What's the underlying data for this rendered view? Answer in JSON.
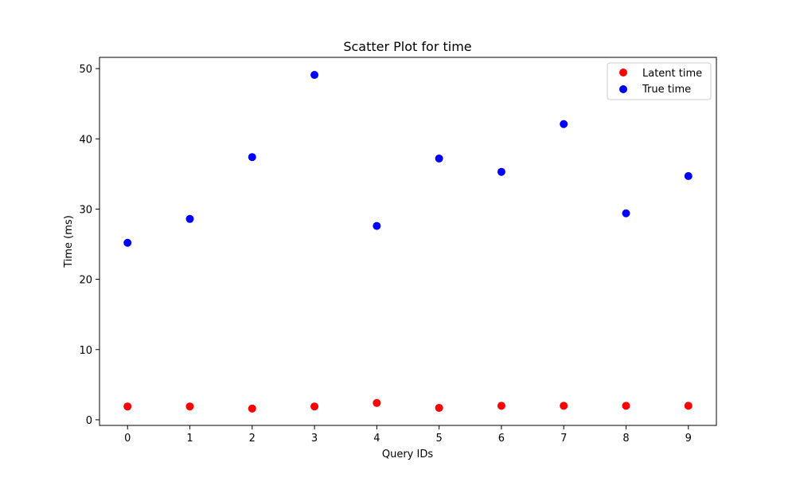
{
  "chart_data": {
    "type": "scatter",
    "title": "Scatter Plot for time",
    "xlabel": "Query IDs",
    "ylabel": "Time (ms)",
    "x": [
      0,
      1,
      2,
      3,
      4,
      5,
      6,
      7,
      8,
      9
    ],
    "xticks": [
      "0",
      "1",
      "2",
      "3",
      "4",
      "5",
      "6",
      "7",
      "8",
      "9"
    ],
    "yticks": [
      "0",
      "10",
      "20",
      "30",
      "40",
      "50"
    ],
    "xlim": [
      -0.45,
      9.45
    ],
    "ylim": [
      -0.8,
      51.6
    ],
    "grid": false,
    "legend_position": "top-right",
    "series": [
      {
        "name": "Latent time",
        "color": "#ff0000",
        "values": [
          1.9,
          1.9,
          1.6,
          1.9,
          2.4,
          1.7,
          2.0,
          2.0,
          2.0,
          2.0
        ]
      },
      {
        "name": "True time",
        "color": "#0000ff",
        "values": [
          25.2,
          28.6,
          37.4,
          49.1,
          27.6,
          37.2,
          35.3,
          42.1,
          29.4,
          34.7
        ]
      }
    ]
  }
}
